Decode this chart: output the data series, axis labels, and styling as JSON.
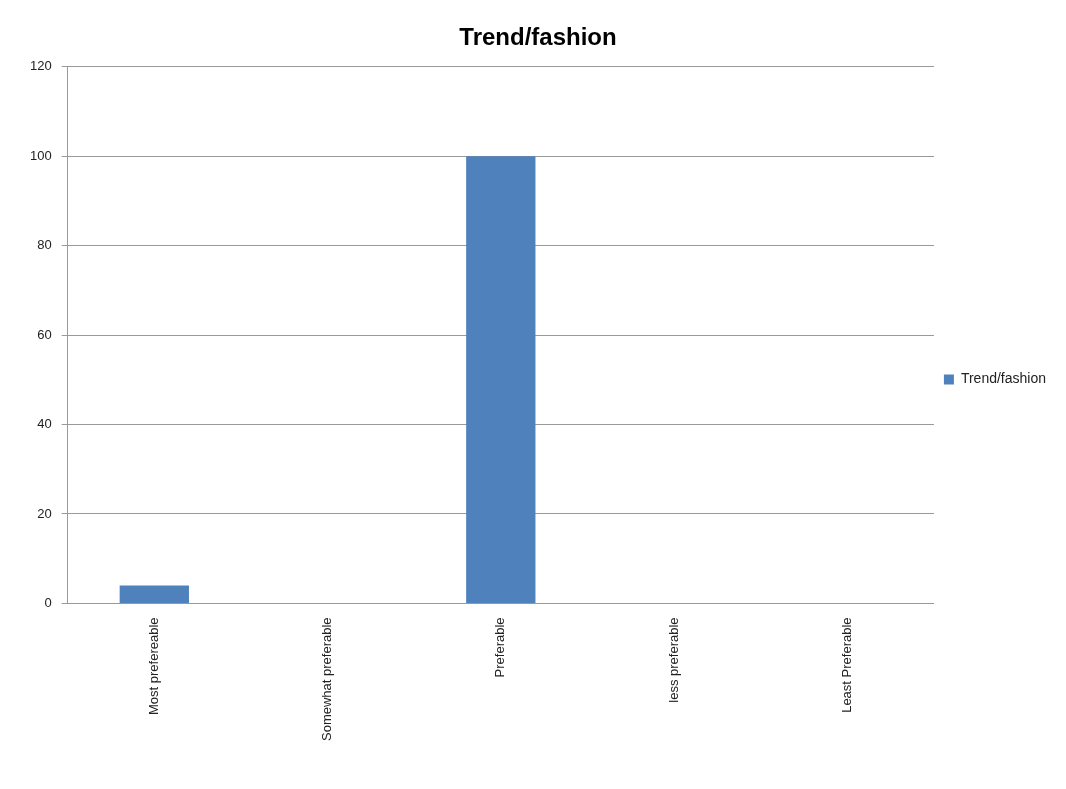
{
  "chart_data": {
    "type": "bar",
    "title": "Trend/fashion",
    "categories": [
      "Most prefereable",
      "Somewhat preferable",
      "Preferable",
      "less preferable",
      "Least Preferable"
    ],
    "series": [
      {
        "name": "Trend/fashion",
        "color": "#4f81bd",
        "values": [
          4,
          0,
          100,
          0,
          0
        ]
      }
    ],
    "ylim": [
      0,
      120
    ],
    "yticks": [
      0,
      20,
      40,
      60,
      80,
      100,
      120
    ],
    "grid": "y",
    "legend": "right"
  }
}
